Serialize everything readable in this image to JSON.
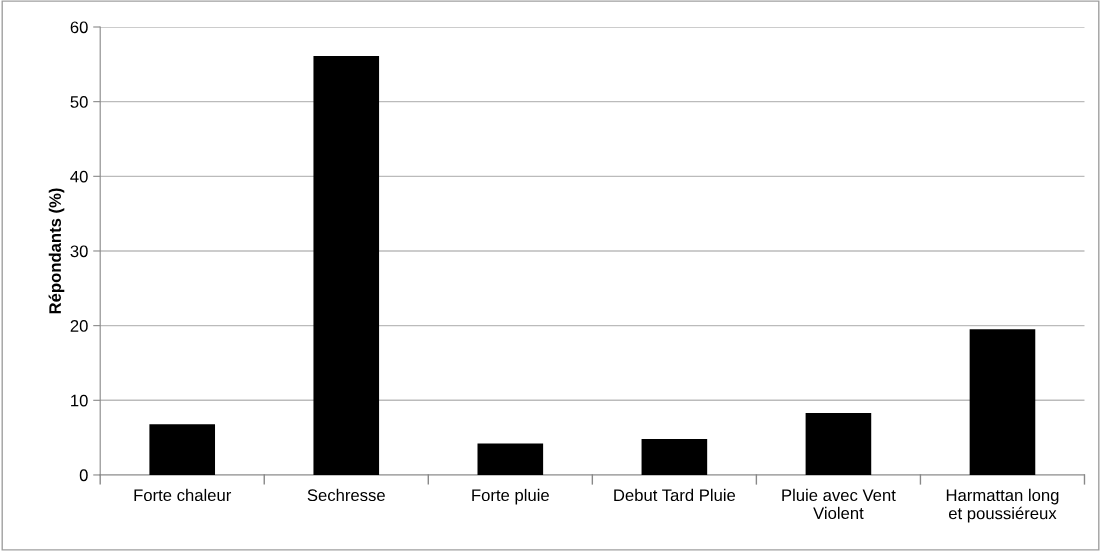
{
  "chart_data": {
    "type": "bar",
    "ylabel": "Répondants (%)",
    "categories": [
      "Forte chaleur",
      "Sechresse",
      "Forte pluie",
      "Debut Tard Pluie",
      "Pluie avec Vent\nViolent",
      "Harmattan long\net poussiéreux"
    ],
    "values": [
      6.8,
      56.1,
      4.2,
      4.8,
      8.3,
      19.5
    ],
    "color": "#000000",
    "ylim": [
      0,
      60
    ],
    "yticks": [
      0,
      10,
      20,
      30,
      40,
      50,
      60
    ],
    "grid": "y"
  }
}
